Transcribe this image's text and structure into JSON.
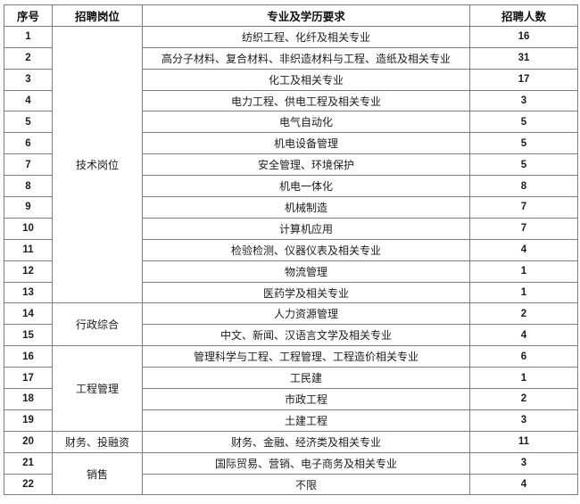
{
  "table": {
    "headers": {
      "no": "序号",
      "position": "招聘岗位",
      "major": "专业及学历要求",
      "count": "招聘人数"
    },
    "groups": [
      {
        "position": "技术岗位",
        "rows": [
          {
            "no": "1",
            "major": "纺织工程、化纤及相关专业",
            "count": "16"
          },
          {
            "no": "2",
            "major": "高分子材料、复合材料、非织造材料与工程、造纸及相关专业",
            "count": "31"
          },
          {
            "no": "3",
            "major": "化工及相关专业",
            "count": "17"
          },
          {
            "no": "4",
            "major": "电力工程、供电工程及相关专业",
            "count": "3"
          },
          {
            "no": "5",
            "major": "电气自动化",
            "count": "5"
          },
          {
            "no": "6",
            "major": "机电设备管理",
            "count": "5"
          },
          {
            "no": "7",
            "major": "安全管理、环境保护",
            "count": "5"
          },
          {
            "no": "8",
            "major": "机电一体化",
            "count": "8"
          },
          {
            "no": "9",
            "major": "机械制造",
            "count": "7"
          },
          {
            "no": "10",
            "major": "计算机应用",
            "count": "7"
          },
          {
            "no": "11",
            "major": "检验检测、仪器仪表及相关专业",
            "count": "4"
          },
          {
            "no": "12",
            "major": "物流管理",
            "count": "1"
          },
          {
            "no": "13",
            "major": "医药学及相关专业",
            "count": "1"
          }
        ]
      },
      {
        "position": "行政综合",
        "rows": [
          {
            "no": "14",
            "major": "人力资源管理",
            "count": "2"
          },
          {
            "no": "15",
            "major": "中文、新闻、汉语言文学及相关专业",
            "count": "4"
          }
        ]
      },
      {
        "position": "工程管理",
        "rows": [
          {
            "no": "16",
            "major": "管理科学与工程、工程管理、工程造价相关专业",
            "count": "6"
          },
          {
            "no": "17",
            "major": "工民建",
            "count": "1"
          },
          {
            "no": "18",
            "major": "市政工程",
            "count": "2"
          },
          {
            "no": "19",
            "major": "土建工程",
            "count": "3"
          }
        ]
      },
      {
        "position": "财务、投融资",
        "rows": [
          {
            "no": "20",
            "major": "财务、金融、经济类及相关专业",
            "count": "11"
          }
        ]
      },
      {
        "position": "销售",
        "rows": [
          {
            "no": "21",
            "major": "国际贸易、营销、电子商务及相关专业",
            "count": "3"
          },
          {
            "no": "22",
            "major": "不限",
            "count": "4"
          }
        ]
      }
    ]
  },
  "colors": {
    "border": "#7d7d7d",
    "text": "#1c1c1c",
    "background": "#ffffff"
  }
}
